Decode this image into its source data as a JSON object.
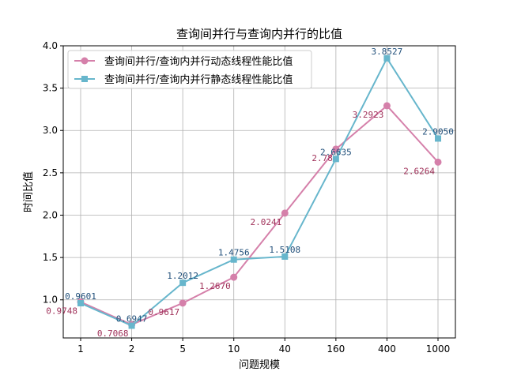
{
  "chart_data": {
    "type": "line",
    "title": "查询间并行与查询内并行的比值",
    "xlabel": "问题规模",
    "ylabel": "时间比值",
    "categories": [
      "1",
      "2",
      "5",
      "10",
      "40",
      "160",
      "400",
      "1000"
    ],
    "ylim": [
      0.55,
      4.0
    ],
    "yticks": [
      "1.0",
      "1.5",
      "2.0",
      "2.5",
      "3.0",
      "3.5",
      "4.0"
    ],
    "grid": true,
    "legend_position": "upper-left",
    "series": [
      {
        "name": "查询间并行/查询内并行动态线程性能比值",
        "values": [
          0.9748,
          0.7068,
          0.9617,
          1.267,
          2.0241,
          2.78,
          3.2923,
          2.6264
        ],
        "labels": [
          "0.9748",
          "0.7068",
          "0.9617",
          "1.2670",
          "2.0241",
          "2.78",
          "3.2923",
          "2.6264"
        ],
        "color": "#d580aa",
        "label_color": "#a0325a",
        "marker": "circle"
      },
      {
        "name": "查询间并行/查询内并行静态线程性能比值",
        "values": [
          0.9601,
          0.6947,
          1.2012,
          1.4756,
          1.5108,
          2.6635,
          3.8527,
          2.905
        ],
        "labels": [
          "0.9601",
          "0.6947",
          "1.2012",
          "1.4756",
          "1.5108",
          "2.6635",
          "3.8527",
          "2.9050"
        ],
        "color": "#67b6cc",
        "label_color": "#1f4e79",
        "marker": "square"
      }
    ]
  }
}
